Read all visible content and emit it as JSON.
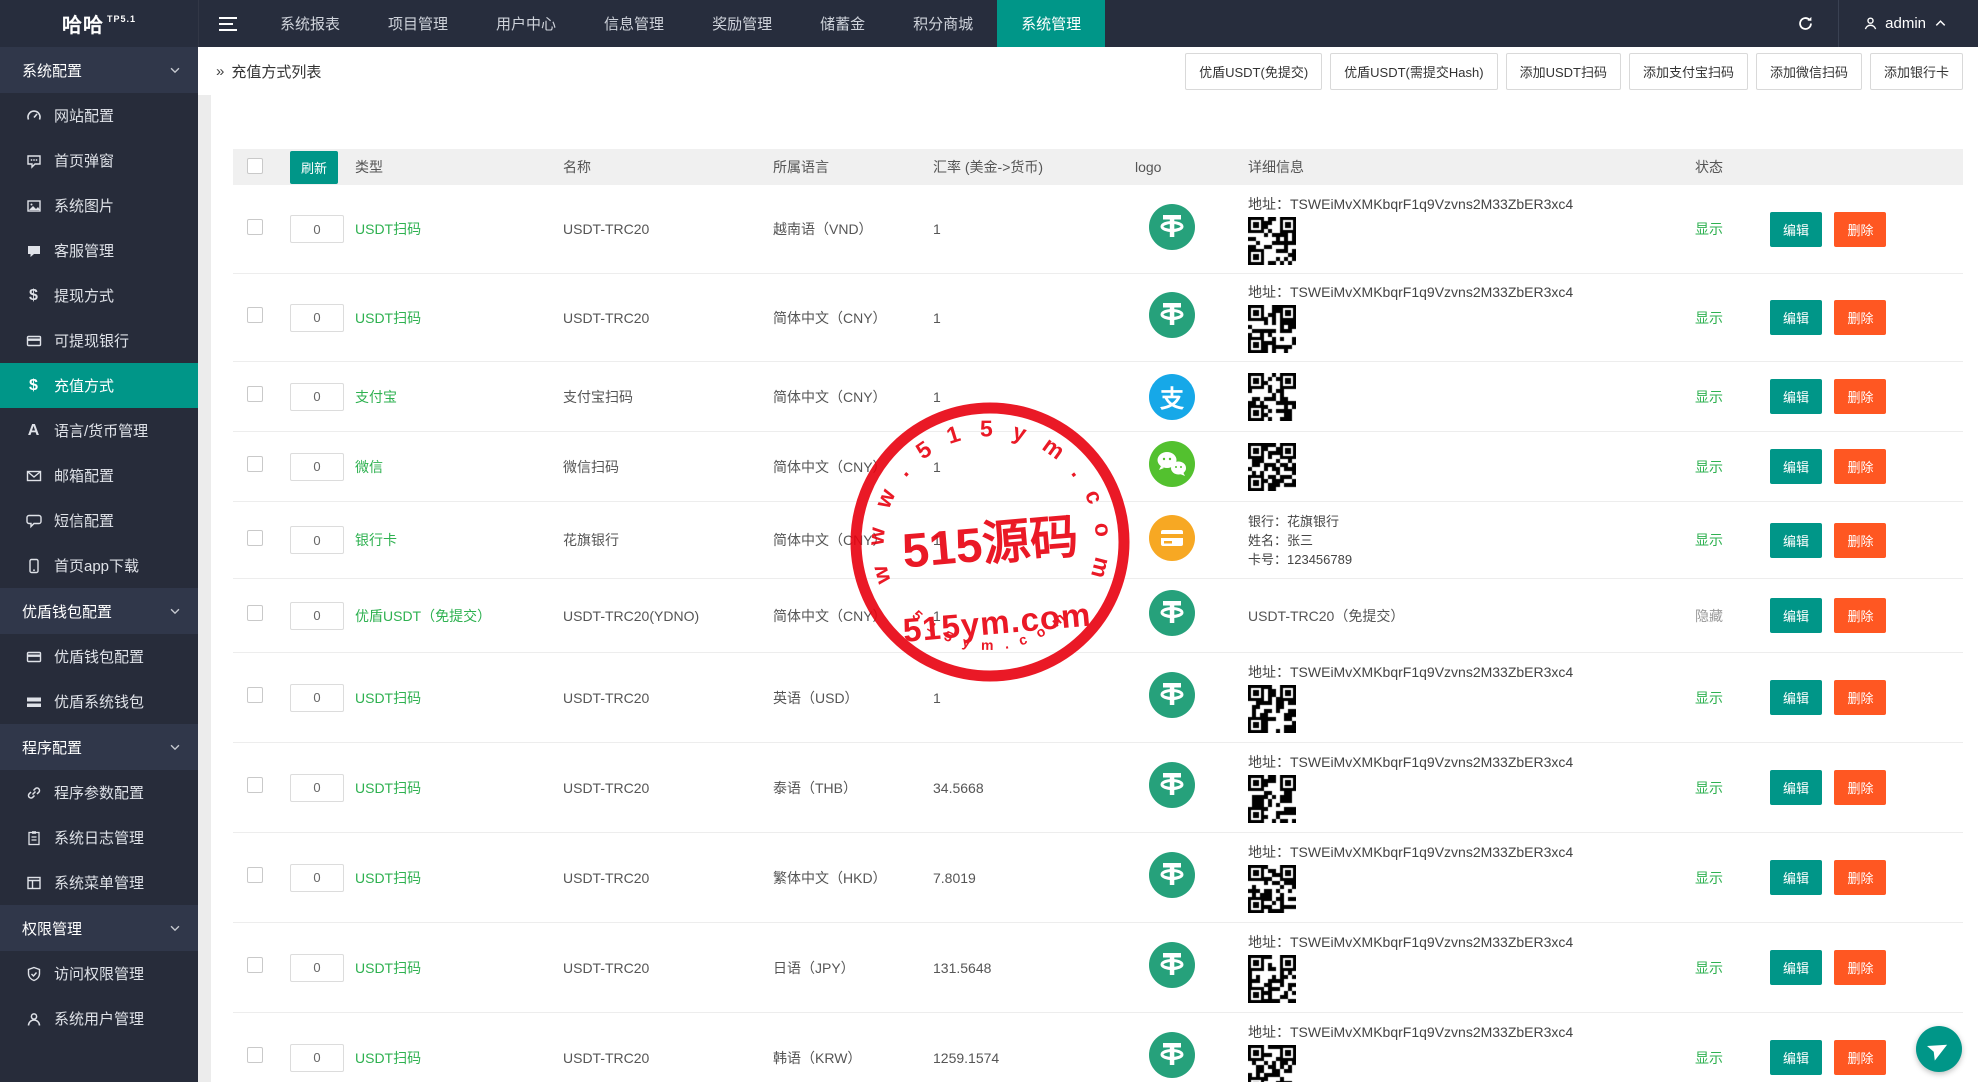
{
  "colors": {
    "accent": "#009688",
    "danger": "#FF5722",
    "green": "#2eb150",
    "tether": "#26a17b",
    "alipay": "#16a8e8",
    "wechat": "#53c12f",
    "bank": "#f7a823",
    "stamp": "#e8000f"
  },
  "topbar": {
    "logo": "哈哈",
    "logo_sup": "TP5.1",
    "nav": [
      {
        "label": "系统报表",
        "active": false
      },
      {
        "label": "项目管理",
        "active": false
      },
      {
        "label": "用户中心",
        "active": false
      },
      {
        "label": "信息管理",
        "active": false
      },
      {
        "label": "奖励管理",
        "active": false
      },
      {
        "label": "储蓄金",
        "active": false
      },
      {
        "label": "积分商城",
        "active": false
      },
      {
        "label": "系统管理",
        "active": true
      }
    ],
    "admin_label": "admin"
  },
  "sidebar": {
    "items": [
      {
        "kind": "section",
        "label": "系统配置",
        "icon": "chevdown"
      },
      {
        "kind": "item",
        "label": "网站配置",
        "icon": "gauge",
        "active": false
      },
      {
        "kind": "item",
        "label": "首页弹窗",
        "icon": "popup",
        "active": false
      },
      {
        "kind": "item",
        "label": "系统图片",
        "icon": "image",
        "active": false
      },
      {
        "kind": "item",
        "label": "客服管理",
        "icon": "chat",
        "active": false
      },
      {
        "kind": "item",
        "label": "提现方式",
        "icon": "dollar",
        "active": false
      },
      {
        "kind": "item",
        "label": "可提现银行",
        "icon": "card",
        "active": false
      },
      {
        "kind": "item",
        "label": "充值方式",
        "icon": "dollar",
        "active": true
      },
      {
        "kind": "item",
        "label": "语言/货币管理",
        "icon": "fontA",
        "active": false
      },
      {
        "kind": "item",
        "label": "邮箱配置",
        "icon": "mail",
        "active": false
      },
      {
        "kind": "item",
        "label": "短信配置",
        "icon": "sms",
        "active": false
      },
      {
        "kind": "item",
        "label": "首页app下载",
        "icon": "mobile",
        "active": false
      },
      {
        "kind": "section",
        "label": "优盾钱包配置",
        "icon": "chevdown"
      },
      {
        "kind": "item",
        "label": "优盾钱包配置",
        "icon": "card",
        "active": false
      },
      {
        "kind": "item",
        "label": "优盾系统钱包",
        "icon": "card2",
        "active": false
      },
      {
        "kind": "section",
        "label": "程序配置",
        "icon": "chevdown"
      },
      {
        "kind": "item",
        "label": "程序参数配置",
        "icon": "link",
        "active": false
      },
      {
        "kind": "item",
        "label": "系统日志管理",
        "icon": "clipboard",
        "active": false
      },
      {
        "kind": "item",
        "label": "系统菜单管理",
        "icon": "window",
        "active": false
      },
      {
        "kind": "section",
        "label": "权限管理",
        "icon": "chevdown"
      },
      {
        "kind": "item",
        "label": "访问权限管理",
        "icon": "shield",
        "active": false
      },
      {
        "kind": "item",
        "label": "系统用户管理",
        "icon": "user",
        "active": false
      }
    ]
  },
  "breadcrumb": {
    "arrow": "»",
    "title": "充值方式列表"
  },
  "toolbar_buttons": [
    "优盾USDT(免提交)",
    "优盾USDT(需提交Hash)",
    "添加USDT扫码",
    "添加支付宝扫码",
    "添加微信扫码",
    "添加银行卡"
  ],
  "table": {
    "refresh_label": "刷新",
    "headers": {
      "type": "类型",
      "name": "名称",
      "lang": "所属语言",
      "rate": "汇率 (美金->货币)",
      "logo": "logo",
      "detail": "详细信息",
      "status": "状态"
    },
    "edit_label": "编辑",
    "delete_label": "删除",
    "rows": [
      {
        "num": "0",
        "type": "USDT扫码",
        "name": "USDT-TRC20",
        "lang": "越南语（VND）",
        "rate": "1",
        "logo": "tether",
        "detail": {
          "kind": "address-qr",
          "address": "地址：TSWEiMvXMKbqrF1q9Vzvns2M33ZbER3xc4"
        },
        "status": "显示",
        "status_type": "show"
      },
      {
        "num": "0",
        "type": "USDT扫码",
        "name": "USDT-TRC20",
        "lang": "简体中文（CNY）",
        "rate": "1",
        "logo": "tether",
        "detail": {
          "kind": "address-qr",
          "address": "地址：TSWEiMvXMKbqrF1q9Vzvns2M33ZbER3xc4"
        },
        "status": "显示",
        "status_type": "show"
      },
      {
        "num": "0",
        "type": "支付宝",
        "name": "支付宝扫码",
        "lang": "简体中文（CNY）",
        "rate": "1",
        "logo": "alipay",
        "detail": {
          "kind": "qr"
        },
        "status": "显示",
        "status_type": "show"
      },
      {
        "num": "0",
        "type": "微信",
        "name": "微信扫码",
        "lang": "简体中文（CNY）",
        "rate": "1",
        "logo": "wechat",
        "detail": {
          "kind": "qr"
        },
        "status": "显示",
        "status_type": "show"
      },
      {
        "num": "0",
        "type": "银行卡",
        "name": "花旗银行",
        "lang": "简体中文（CNY）",
        "rate": "1",
        "logo": "bank",
        "detail": {
          "kind": "bank",
          "lines": [
            "银行：花旗银行",
            "姓名：张三",
            "卡号：123456789"
          ]
        },
        "status": "显示",
        "status_type": "show"
      },
      {
        "num": "0",
        "type": "优盾USDT（免提交）",
        "name": "USDT-TRC20(YDNO)",
        "lang": "简体中文（CNY）",
        "rate": "1",
        "logo": "tether",
        "detail": {
          "kind": "text",
          "text": "USDT-TRC20（免提交）"
        },
        "status": "隐藏",
        "status_type": "hide"
      },
      {
        "num": "0",
        "type": "USDT扫码",
        "name": "USDT-TRC20",
        "lang": "英语（USD）",
        "rate": "1",
        "logo": "tether",
        "detail": {
          "kind": "address-qr",
          "address": "地址：TSWEiMvXMKbqrF1q9Vzvns2M33ZbER3xc4"
        },
        "status": "显示",
        "status_type": "show"
      },
      {
        "num": "0",
        "type": "USDT扫码",
        "name": "USDT-TRC20",
        "lang": "泰语（THB）",
        "rate": "34.5668",
        "logo": "tether",
        "detail": {
          "kind": "address-qr",
          "address": "地址：TSWEiMvXMKbqrF1q9Vzvns2M33ZbER3xc4"
        },
        "status": "显示",
        "status_type": "show"
      },
      {
        "num": "0",
        "type": "USDT扫码",
        "name": "USDT-TRC20",
        "lang": "繁体中文（HKD）",
        "rate": "7.8019",
        "logo": "tether",
        "detail": {
          "kind": "address-qr",
          "address": "地址：TSWEiMvXMKbqrF1q9Vzvns2M33ZbER3xc4"
        },
        "status": "显示",
        "status_type": "show"
      },
      {
        "num": "0",
        "type": "USDT扫码",
        "name": "USDT-TRC20",
        "lang": "日语（JPY）",
        "rate": "131.5648",
        "logo": "tether",
        "detail": {
          "kind": "address-qr",
          "address": "地址：TSWEiMvXMKbqrF1q9Vzvns2M33ZbER3xc4"
        },
        "status": "显示",
        "status_type": "show"
      },
      {
        "num": "0",
        "type": "USDT扫码",
        "name": "USDT-TRC20",
        "lang": "韩语（KRW）",
        "rate": "1259.1574",
        "logo": "tether",
        "detail": {
          "kind": "address-qr",
          "address": "地址：TSWEiMvXMKbqrF1q9Vzvns2M33ZbER3xc4"
        },
        "status": "显示",
        "status_type": "show"
      }
    ]
  },
  "watermark": {
    "arc_top": "w w w . 5 1 5 y m . c o m",
    "center": "515源码",
    "center_sub": "515ym.com",
    "arc_bottom": "5 1 5 y m . c o m"
  }
}
